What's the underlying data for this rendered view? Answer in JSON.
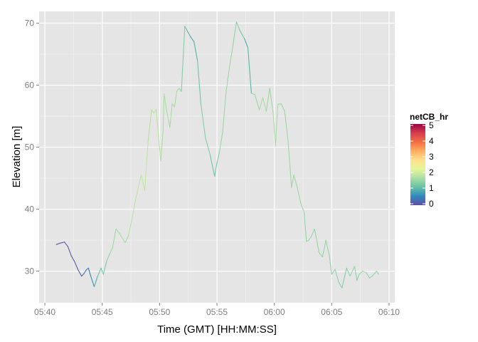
{
  "chart_data": {
    "type": "line",
    "title": "",
    "xlabel": "Time (GMT) [HH:MM:SS]",
    "ylabel": "Elevation [m]",
    "x_ticks": [
      "05:40",
      "05:45",
      "05:50",
      "05:55",
      "06:00",
      "06:05",
      "06:10"
    ],
    "x_tick_minutes": [
      0,
      5,
      10,
      15,
      20,
      25,
      30
    ],
    "xlim_minutes": [
      -0.5,
      30.5
    ],
    "y_ticks": [
      30,
      40,
      50,
      60,
      70
    ],
    "ylim": [
      24.9,
      71.9
    ],
    "grid": true,
    "panel_color": "#e5e5e5",
    "legend": {
      "title": "netCB_hr",
      "placement": "right",
      "labels": [
        "5",
        "4",
        "3",
        "2",
        "1",
        "0"
      ],
      "range": [
        0,
        5
      ],
      "colors": [
        "#5e4fa2",
        "#3288bd",
        "#66c2a5",
        "#abdda4",
        "#e6f598",
        "#fee08b",
        "#fdae61",
        "#f46d43",
        "#d53e4f",
        "#9e0142"
      ]
    },
    "series": [
      {
        "x_minutes": [
          1.0,
          1.3,
          1.7,
          2.0,
          2.3,
          2.6,
          2.9,
          3.2,
          3.4,
          3.6,
          3.8,
          4.0,
          4.3,
          4.6,
          4.9,
          5.1,
          5.4,
          5.7,
          5.9,
          6.2,
          6.5,
          6.8,
          7.0,
          7.3,
          7.6,
          7.9,
          8.2,
          8.4,
          8.7,
          9.0,
          9.3,
          9.5,
          9.7,
          9.9,
          10.1,
          10.3,
          10.4,
          10.6,
          10.9,
          11.1,
          11.3,
          11.5,
          11.7,
          11.9,
          12.2,
          12.4,
          12.7,
          13.0,
          13.3,
          13.6,
          14.0,
          14.4,
          14.8,
          15.0,
          15.2,
          15.5,
          15.8,
          16.1,
          16.4,
          16.7,
          17.0,
          17.4,
          17.7,
          18.0,
          18.3,
          18.7,
          19.0,
          19.3,
          19.6,
          19.9,
          20.1,
          20.3,
          20.6,
          20.9,
          21.2,
          21.5,
          21.7,
          22.0,
          22.3,
          22.6,
          22.8,
          23.0,
          23.2,
          23.5,
          23.7,
          23.9,
          24.2,
          24.5,
          24.8,
          25.0,
          25.3,
          25.6,
          25.9,
          26.3,
          26.6,
          27.0,
          27.2,
          27.4,
          27.7,
          28.0,
          28.3,
          28.6,
          28.9,
          29.1
        ],
        "y": [
          34.3,
          34.5,
          34.7,
          34.0,
          32.5,
          31.5,
          30.2,
          29.2,
          29.6,
          30.2,
          30.5,
          29.2,
          27.5,
          29.2,
          30.5,
          29.5,
          31.7,
          33.0,
          33.8,
          36.8,
          36.1,
          35.2,
          34.6,
          35.8,
          38.5,
          41.5,
          44.0,
          45.5,
          43.0,
          51.0,
          56.0,
          55.5,
          56.1,
          52.0,
          47.7,
          52.5,
          58.6,
          56.0,
          53.2,
          57.0,
          56.5,
          59.0,
          59.5,
          59.0,
          69.5,
          68.8,
          67.8,
          67.0,
          64.0,
          57.0,
          51.5,
          48.8,
          45.3,
          47.5,
          49.0,
          52.5,
          59.0,
          63.0,
          66.5,
          70.2,
          68.8,
          67.5,
          66.0,
          58.7,
          58.5,
          56.0,
          58.0,
          55.8,
          59.5,
          55.5,
          50.2,
          56.9,
          57.0,
          55.8,
          51.0,
          43.5,
          45.5,
          43.5,
          41.0,
          39.5,
          34.8,
          35.0,
          35.5,
          36.8,
          35.0,
          33.0,
          32.3,
          35.0,
          32.5,
          29.5,
          30.3,
          28.3,
          27.3,
          30.5,
          29.2,
          30.8,
          28.5,
          29.5,
          30.0,
          29.8,
          28.9,
          29.3,
          30.0,
          29.5
        ],
        "netCB_hr": [
          0.05,
          0.05,
          0.05,
          0.1,
          0.15,
          0.1,
          0.15,
          0.1,
          0.3,
          0.6,
          0.5,
          0.4,
          0.8,
          1.0,
          1.3,
          1.1,
          1.4,
          1.5,
          1.6,
          1.5,
          1.6,
          1.7,
          1.6,
          1.7,
          1.8,
          1.8,
          1.9,
          1.8,
          1.9,
          1.8,
          1.7,
          1.8,
          1.9,
          1.8,
          1.7,
          1.6,
          1.7,
          1.7,
          1.6,
          1.7,
          1.6,
          1.7,
          1.6,
          1.5,
          1.2,
          1.0,
          0.9,
          0.8,
          1.1,
          1.3,
          1.4,
          1.3,
          1.1,
          1.3,
          1.4,
          1.6,
          1.5,
          1.6,
          1.5,
          1.4,
          1.3,
          1.1,
          0.6,
          1.4,
          1.5,
          1.6,
          1.7,
          1.6,
          1.5,
          1.6,
          1.7,
          1.6,
          1.6,
          1.5,
          1.6,
          1.5,
          1.6,
          1.5,
          1.6,
          1.5,
          1.5,
          1.6,
          1.6,
          1.5,
          1.5,
          1.6,
          1.5,
          1.5,
          1.5,
          1.4,
          1.5,
          1.4,
          1.3,
          1.4,
          1.5,
          1.5,
          1.4,
          1.5,
          1.6,
          1.5,
          1.5,
          1.4,
          1.5,
          1.5
        ]
      }
    ]
  }
}
